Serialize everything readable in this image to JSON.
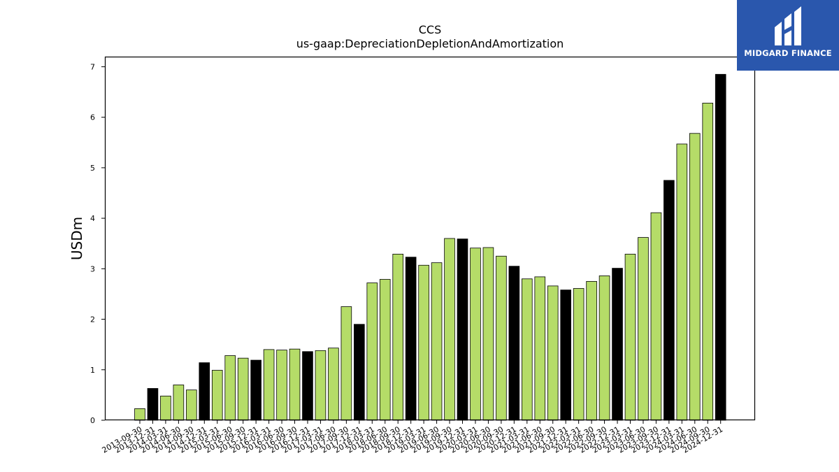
{
  "brand": {
    "name": "MIDGARD FINANCE"
  },
  "colors": {
    "bar_green": "#b5dc68",
    "bar_black": "#000000",
    "brand_blue": "#2a57ad"
  },
  "chart_data": {
    "type": "bar",
    "title": "CCS",
    "subtitle": "us-gaap:DepreciationDepletionAndAmortization",
    "ylabel": "USDm",
    "xlabel": "",
    "ylim": [
      0,
      7.2
    ],
    "yticks": [
      0,
      1,
      2,
      3,
      4,
      5,
      6,
      7
    ],
    "grid": false,
    "categories": [
      "2013-09-30",
      "2013-12-31",
      "2014-03-31",
      "2014-06-30",
      "2014-09-30",
      "2014-12-31",
      "2015-03-31",
      "2015-06-30",
      "2015-09-30",
      "2015-12-31",
      "2016-03-31",
      "2016-06-30",
      "2016-09-30",
      "2016-12-31",
      "2017-03-31",
      "2017-06-30",
      "2017-09-30",
      "2017-12-31",
      "2018-03-31",
      "2018-06-30",
      "2018-09-30",
      "2018-12-31",
      "2019-03-31",
      "2019-06-30",
      "2019-09-30",
      "2019-12-31",
      "2020-03-31",
      "2020-06-30",
      "2020-09-30",
      "2020-12-31",
      "2021-03-31",
      "2021-06-30",
      "2021-09-30",
      "2021-12-31",
      "2022-03-31",
      "2022-06-30",
      "2022-09-30",
      "2022-12-31",
      "2023-03-31",
      "2023-06-30",
      "2023-09-30",
      "2023-12-31",
      "2024-03-31",
      "2024-06-30",
      "2024-09-30",
      "2024-12-31"
    ],
    "values": [
      0.23,
      0.63,
      0.48,
      0.7,
      0.6,
      1.14,
      0.99,
      1.28,
      1.23,
      1.19,
      1.4,
      1.39,
      1.41,
      1.36,
      1.38,
      1.43,
      2.25,
      1.9,
      2.72,
      2.79,
      3.29,
      3.23,
      3.07,
      3.12,
      3.6,
      3.59,
      3.41,
      3.42,
      3.25,
      3.05,
      2.8,
      2.84,
      2.66,
      2.58,
      2.61,
      2.75,
      2.86,
      3.01,
      3.29,
      3.62,
      4.11,
      4.75,
      5.47,
      5.68,
      6.28,
      6.85
    ],
    "highlight": [
      false,
      true,
      false,
      false,
      false,
      true,
      false,
      false,
      false,
      true,
      false,
      false,
      false,
      true,
      false,
      false,
      false,
      true,
      false,
      false,
      false,
      true,
      false,
      false,
      false,
      true,
      false,
      false,
      false,
      true,
      false,
      false,
      false,
      true,
      false,
      false,
      false,
      true,
      false,
      false,
      false,
      true,
      false,
      false,
      false,
      true
    ]
  }
}
